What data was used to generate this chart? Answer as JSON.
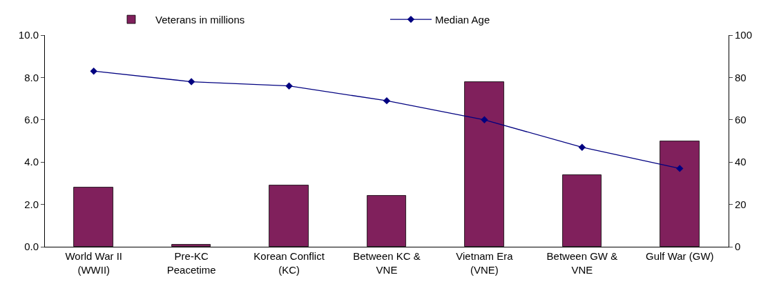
{
  "chart_data": {
    "type": "bar",
    "categories": [
      "World War II (WWII)",
      "Pre-KC Peacetime",
      "Korean Conflict (KC)",
      "Between KC & VNE",
      "Vietnam Era (VNE)",
      "Between GW & VNE",
      "Gulf War (GW)"
    ],
    "series": [
      {
        "name": "Veterans in millions",
        "color": "#80205c",
        "values": [
          2.8,
          0.1,
          2.9,
          2.4,
          7.8,
          3.4,
          5.0
        ]
      },
      {
        "name": "Median Age",
        "type": "line",
        "axis": "y2",
        "color": "#000080",
        "marker": "diamond",
        "values": [
          83,
          78,
          76,
          69,
          60,
          47,
          37
        ]
      }
    ],
    "ylim": [
      0,
      10
    ],
    "yticks": [
      {
        "value": 0,
        "label": "0.0"
      },
      {
        "value": 2,
        "label": "2.0"
      },
      {
        "value": 4,
        "label": "4.0"
      },
      {
        "value": 6,
        "label": "6.0"
      },
      {
        "value": 8,
        "label": "8.0"
      },
      {
        "value": 10,
        "label": "10.0"
      }
    ],
    "y2lim": [
      0,
      100
    ],
    "y2ticks": [
      0,
      20,
      40,
      60,
      80,
      100
    ],
    "grid": false,
    "legend": "top"
  }
}
